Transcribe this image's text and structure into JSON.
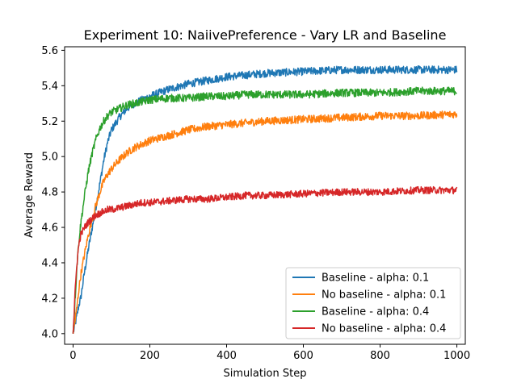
{
  "chart_data": {
    "type": "line",
    "title": "Experiment 10: NaiivePreference - Vary LR and Baseline",
    "xlabel": "Simulation Step",
    "ylabel": "Average Reward",
    "xlim": [
      -22,
      1022
    ],
    "ylim": [
      3.94,
      5.62
    ],
    "xticks": [
      0,
      200,
      400,
      600,
      800,
      1000
    ],
    "xtick_labels": [
      "0",
      "200",
      "400",
      "600",
      "800",
      "1000"
    ],
    "yticks": [
      4.0,
      4.2,
      4.4,
      4.6,
      4.8,
      5.0,
      5.2,
      5.4,
      5.6
    ],
    "ytick_labels": [
      "4.0",
      "4.2",
      "4.4",
      "4.6",
      "4.8",
      "5.0",
      "5.2",
      "5.4",
      "5.6"
    ],
    "grid": false,
    "legend_position": "lower-right",
    "x": [
      0,
      5,
      10,
      15,
      20,
      30,
      40,
      50,
      60,
      70,
      80,
      90,
      100,
      120,
      140,
      160,
      180,
      200,
      250,
      300,
      350,
      400,
      450,
      500,
      600,
      700,
      800,
      900,
      1000
    ],
    "series": [
      {
        "name": "Baseline - alpha: 0.1",
        "color": "#1f77b4",
        "noise": 0.022,
        "values": [
          4.0,
          4.05,
          4.1,
          4.16,
          4.2,
          4.35,
          4.48,
          4.6,
          4.72,
          4.85,
          4.98,
          5.08,
          5.15,
          5.22,
          5.27,
          5.3,
          5.32,
          5.34,
          5.38,
          5.41,
          5.43,
          5.45,
          5.46,
          5.47,
          5.48,
          5.49,
          5.49,
          5.49,
          5.49
        ]
      },
      {
        "name": "No baseline - alpha: 0.1",
        "color": "#ff7f0e",
        "noise": 0.022,
        "values": [
          4.0,
          4.07,
          4.15,
          4.25,
          4.33,
          4.45,
          4.56,
          4.65,
          4.73,
          4.8,
          4.86,
          4.9,
          4.93,
          4.98,
          5.02,
          5.05,
          5.07,
          5.09,
          5.12,
          5.15,
          5.17,
          5.18,
          5.19,
          5.2,
          5.21,
          5.22,
          5.23,
          5.23,
          5.24
        ]
      },
      {
        "name": "Baseline - alpha: 0.4",
        "color": "#2ca02c",
        "noise": 0.022,
        "values": [
          4.0,
          4.18,
          4.38,
          4.52,
          4.62,
          4.78,
          4.92,
          5.02,
          5.1,
          5.16,
          5.2,
          5.23,
          5.25,
          5.27,
          5.29,
          5.3,
          5.31,
          5.32,
          5.33,
          5.33,
          5.34,
          5.34,
          5.35,
          5.35,
          5.35,
          5.36,
          5.36,
          5.37,
          5.37
        ]
      },
      {
        "name": "No baseline - alpha: 0.4",
        "color": "#d62728",
        "noise": 0.02,
        "values": [
          4.0,
          4.22,
          4.4,
          4.5,
          4.56,
          4.6,
          4.63,
          4.65,
          4.67,
          4.68,
          4.69,
          4.7,
          4.7,
          4.71,
          4.72,
          4.73,
          4.74,
          4.74,
          4.75,
          4.76,
          4.76,
          4.77,
          4.78,
          4.78,
          4.79,
          4.8,
          4.8,
          4.81,
          4.81
        ]
      }
    ]
  }
}
